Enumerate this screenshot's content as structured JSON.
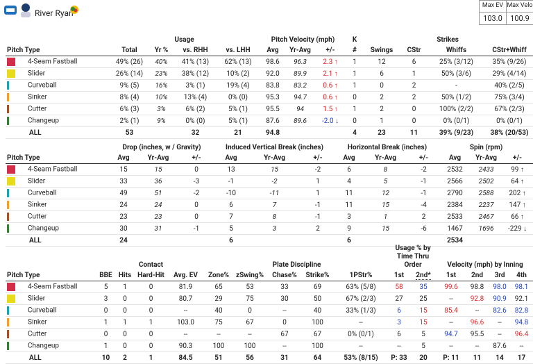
{
  "header": {
    "name": "River Ryan",
    "stats": [
      {
        "label": "Max EV",
        "value": "103.0"
      },
      {
        "label": "Max Velo",
        "value": "100.9"
      }
    ]
  },
  "pitches": [
    {
      "name": "4-Seam Fastball",
      "color": "#d22d49"
    },
    {
      "name": "Slider",
      "color": "#e8dc1a"
    },
    {
      "name": "Curveball",
      "color": "#1fa3b0"
    },
    {
      "name": "Sinker",
      "color": "#f0a030"
    },
    {
      "name": "Cutter",
      "color": "#a0522d"
    },
    {
      "name": "Changeup",
      "color": "#3a7d3a"
    }
  ],
  "total_label": "ALL",
  "tables": [
    {
      "groups": [
        "Usage",
        "Pitch Velocity (mph)",
        "K",
        "Strikes"
      ],
      "columns": [
        "Pitch Type",
        "Total",
        "Yr %",
        "vs. RHH",
        "vs. LHH",
        "Avg",
        "Yr-Avg",
        "+/-",
        "#",
        "Swings",
        "CStr",
        "Whiffs",
        "CStr+Whiff"
      ],
      "rows": [
        [
          "49% (26)",
          "40%",
          "41% (13)",
          "62% (13)",
          "98.6",
          "96.3",
          {
            "text": "2.3 ↑",
            "color": "#d62728"
          },
          "1",
          "12",
          "6",
          "25% (3/12)",
          "35% (9/26)"
        ],
        [
          "26% (14)",
          "23%",
          "38% (12)",
          "10% (2)",
          "92.0",
          "89.9",
          {
            "text": "2.1 ↑",
            "color": "#d62728"
          },
          "1",
          "6",
          "1",
          "50% (3/6)",
          "29% (4/14)"
        ],
        [
          "9% (5)",
          "16%",
          "3% (1)",
          "19% (4)",
          "83.8",
          "83.2",
          {
            "text": "0.6 ↑",
            "color": "#d62728"
          },
          "1",
          "0",
          "2",
          "-",
          "40% (2/5)"
        ],
        [
          "8% (4)",
          "10%",
          "13% (4)",
          "0% (0)",
          "95.3",
          "94.7",
          {
            "text": "0.6 ↑",
            "color": "#d62728"
          },
          "0",
          "2",
          "2",
          "50% (1/2)",
          "75% (3/4)"
        ],
        [
          "6% (3)",
          "3%",
          "6% (2)",
          "5% (1)",
          "95.5",
          "94",
          {
            "text": "1.5 ↑",
            "color": "#d62728"
          },
          "1",
          "2",
          "0",
          "100% (2/2)",
          "67% (2/3)"
        ],
        [
          "2% (1)",
          "9%",
          "0% (0)",
          "5% (1)",
          "87.6",
          "89.6",
          {
            "text": "-2.0 ↓",
            "color": "#1f3fbf"
          },
          "0",
          "1",
          "0",
          "0% (0/1)",
          "0% (0/1)"
        ]
      ],
      "total": [
        "53",
        null,
        "32",
        "21",
        "94.8",
        null,
        null,
        "4",
        "23",
        "11",
        "39% (9/23)",
        "38% (20/53)"
      ]
    },
    {
      "groups": [
        "Drop (inches, w / Gravity)",
        "Induced Vertical Break (inches)",
        "Horizontal Break (inches)",
        "Spin (rpm)"
      ],
      "columns": [
        "Pitch Type",
        "Avg",
        "Yr-Avg",
        "+/-",
        "Avg",
        "Yr-Avg",
        "+/-",
        "Avg",
        "Yr-Avg",
        "+/-",
        "Avg",
        "Yr-Avg",
        "+/-"
      ],
      "rows": [
        [
          "15",
          "15",
          "0",
          "13",
          "15",
          "-2",
          "6",
          "8",
          "-2",
          "2532",
          "2433",
          "99 ↑"
        ],
        [
          "33",
          "36",
          "-3",
          "-1",
          "-2",
          "1",
          "4",
          "5",
          "-1",
          "2566",
          "2502",
          "64 ↑"
        ],
        [
          "49",
          "51",
          "-2",
          "-10",
          "-11",
          "1",
          "11",
          "12",
          "-1",
          "2790",
          "2588",
          "202 ↑"
        ],
        [
          "24",
          "24",
          "0",
          "6",
          "7",
          "-1",
          "11",
          "15",
          "-4",
          "2384",
          "2237",
          "147 ↑"
        ],
        [
          "23",
          "23",
          "0",
          "7",
          "8",
          "-1",
          "3",
          "1",
          "2",
          "2533",
          "2467",
          "66 ↑"
        ],
        [
          "30",
          "31",
          "-1",
          "5",
          "3",
          "2",
          "9",
          "15",
          "-6",
          "1467",
          "1696",
          "-229 ↓"
        ]
      ],
      "total": [
        "24",
        null,
        null,
        "6",
        null,
        null,
        "6",
        null,
        null,
        "2534",
        null,
        null
      ]
    },
    {
      "groups": [
        "Contact",
        "Plate Discipline",
        "Usage % by Time Thru Order",
        "Velocity (mph) by Inning"
      ],
      "columns": [
        "Pitch Type",
        "BBE",
        "Hits",
        "Hard-Hit",
        "Avg. EV",
        "Zone%",
        "zSwing%",
        "Chase%",
        "Strike%",
        "1PStr%",
        "1st",
        "2nd*",
        "1st",
        "2nd",
        "3rd",
        "4th"
      ],
      "rows": [
        [
          "5",
          "1",
          "0",
          "81.9",
          "65",
          "53",
          "33",
          "69",
          "63% (5/8)",
          {
            "text": "58",
            "color": "#d62728"
          },
          {
            "text": "35",
            "color": "#1f3fbf"
          },
          {
            "text": "99.6",
            "color": "#d62728"
          },
          "98.8",
          {
            "text": "98.0",
            "color": "#1f3fbf"
          },
          {
            "text": "98.1",
            "color": "#1f3fbf"
          }
        ],
        [
          "3",
          "0",
          "0",
          "80.7",
          "29",
          "75",
          "30",
          "50",
          "67% (2/3)",
          "27",
          "25",
          "--",
          {
            "text": "92.8",
            "color": "#d62728"
          },
          {
            "text": "90.9",
            "color": "#1f3fbf"
          },
          "92.1"
        ],
        [
          "0",
          "0",
          "0",
          "--",
          "40",
          "0",
          "--",
          "40",
          "33% (1/3)",
          {
            "text": "6",
            "color": "#1f3fbf"
          },
          {
            "text": "15",
            "color": "#d62728"
          },
          {
            "text": "85.4",
            "color": "#d62728"
          },
          "--",
          {
            "text": "82.6",
            "color": "#1f3fbf"
          },
          {
            "text": "82.8",
            "color": "#1f3fbf"
          }
        ],
        [
          "1",
          "1",
          "1",
          "103.0",
          "75",
          "67",
          "0",
          "100",
          "--",
          {
            "text": "3",
            "color": "#1f3fbf"
          },
          {
            "text": "15",
            "color": "#d62728"
          },
          "--",
          {
            "text": "96.6",
            "color": "#d62728"
          },
          "--",
          {
            "text": "94.8",
            "color": "#1f3fbf"
          }
        ],
        [
          "0",
          "0",
          "0",
          "--",
          "--",
          "--",
          "67",
          "67",
          "0% (0/1)",
          "6",
          "5",
          {
            "text": "94.7",
            "color": "#1f3fbf"
          },
          "95.5",
          "--",
          {
            "text": "96.4",
            "color": "#d62728"
          }
        ],
        [
          "1",
          "0",
          "0",
          "90.3",
          "100",
          "100",
          "--",
          "100",
          "--",
          "--",
          "5",
          "--",
          "--",
          "87.6",
          "--"
        ]
      ],
      "total": [
        "10",
        "2",
        "1",
        "84.5",
        "51",
        "56",
        "31",
        "64",
        "53% (8/15)",
        "P: 33",
        "20",
        "P: 11",
        "11",
        "14",
        "17"
      ]
    }
  ]
}
